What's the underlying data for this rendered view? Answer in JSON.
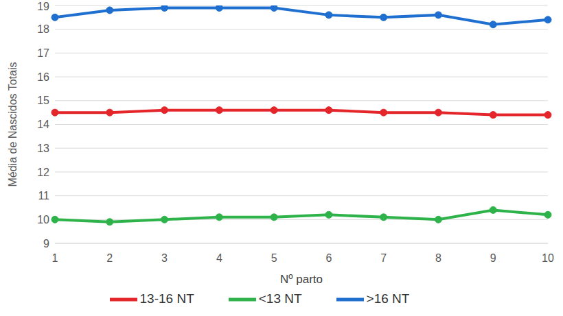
{
  "chart_data": {
    "type": "line",
    "x_label": "Nº parto",
    "y_label": "Média de Nascidos Totais",
    "categories": [
      1,
      2,
      3,
      4,
      5,
      6,
      7,
      8,
      9,
      10
    ],
    "series": [
      {
        "name": "<13 NT",
        "color": "#2eb34a",
        "marker": "circle",
        "values": [
          10.0,
          9.9,
          10.0,
          10.1,
          10.1,
          10.2,
          10.1,
          10.0,
          10.4,
          10.2
        ]
      },
      {
        "name": "13-16 NT",
        "color": "#e4262b",
        "marker": "circle",
        "values": [
          14.5,
          14.5,
          14.6,
          14.6,
          14.6,
          14.6,
          14.5,
          14.5,
          14.4,
          14.4
        ]
      },
      {
        "name": ">16 NT",
        "color": "#1f6fd0",
        "marker": "circle",
        "values": [
          18.5,
          18.8,
          18.9,
          18.9,
          18.9,
          18.6,
          18.5,
          18.6,
          18.2,
          18.4
        ]
      }
    ],
    "ylim": [
      9,
      19
    ],
    "yticks": [
      9,
      10,
      11,
      12,
      13,
      14,
      15,
      16,
      17,
      18,
      19
    ],
    "grid": true,
    "legend": "bottom"
  }
}
